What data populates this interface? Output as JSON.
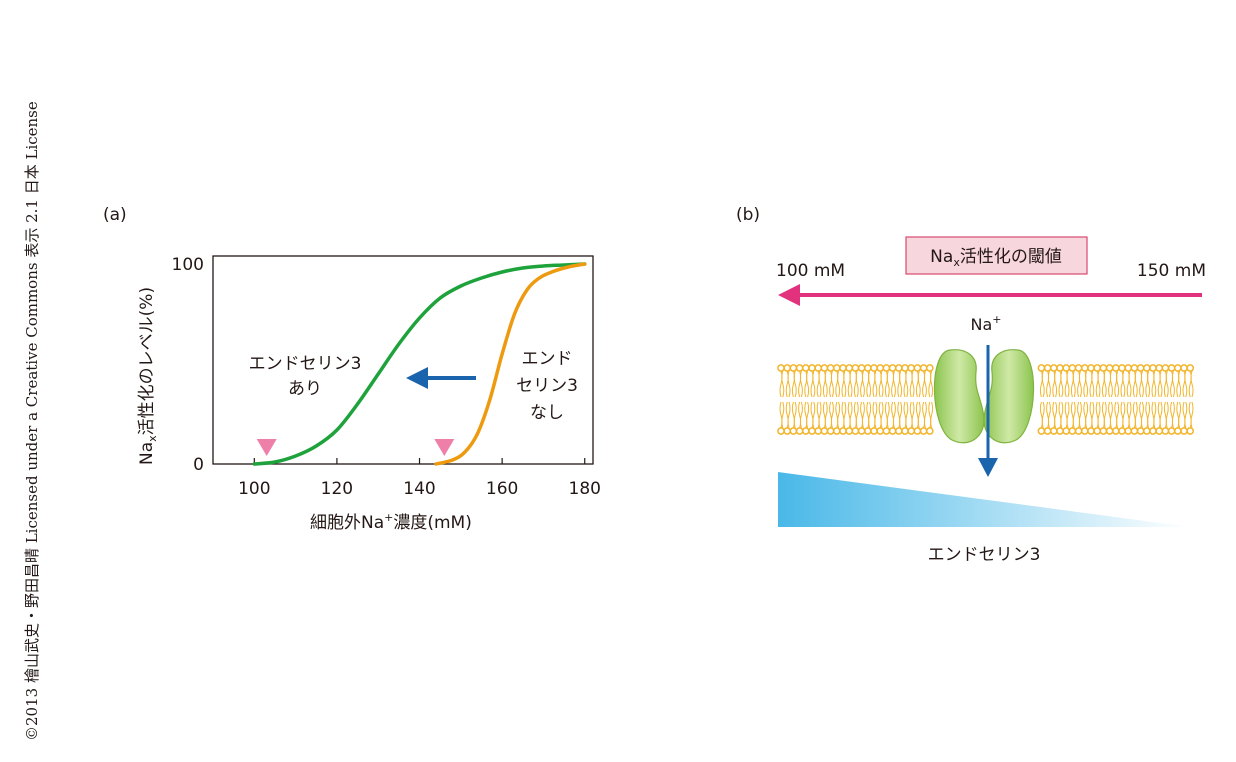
{
  "credit": "©2013 檜山武史・野田昌晴 Licensed under a Creative Commons 表示 2.1 日本 License",
  "panel_a": {
    "label": "(a)",
    "ylabel_main": "Na",
    "ylabel_sub": "x",
    "ylabel_rest": "活性化のレベル(%)",
    "xlabel_pre": "細胞外Na",
    "xlabel_sup": "+",
    "xlabel_post": "濃度(mM)",
    "annotation_with": [
      "エンドセリン3",
      "あり"
    ],
    "annotation_without": [
      "エンド",
      "セリン3",
      "なし"
    ]
  },
  "panel_b": {
    "label": "(b)",
    "threshold_main": "Na",
    "threshold_sub": "x",
    "threshold_rest": "活性化の閾値",
    "left_conc": "100 mM",
    "right_conc": "150 mM",
    "ion_main": "Na",
    "ion_sup": "+",
    "gradient_label": "エンドセリン3"
  },
  "colors": {
    "green_curve": "#1ea33c",
    "orange_curve": "#ee9a10",
    "blue_arrow": "#1a64ad",
    "magenta_arrow": "#e2317d",
    "marker": "#ee7fa9",
    "threshold_fill": "#f8d6dd",
    "threshold_border": "#d84a72",
    "lipid": "#f2b52a",
    "channel": "#a9d66c",
    "gradient": "#49b8e8"
  },
  "chart_data": {
    "type": "line",
    "xlabel": "細胞外Na+濃度(mM)",
    "ylabel": "Nax活性化のレベル(%)",
    "xlim": [
      90,
      182
    ],
    "ylim": [
      0,
      100
    ],
    "x_ticks": [
      100,
      120,
      140,
      160,
      180
    ],
    "y_ticks": [
      0,
      100
    ],
    "series": [
      {
        "name": "エンドセリン3あり",
        "color": "#1ea33c",
        "x": [
          100,
          105,
          110,
          115,
          120,
          125,
          130,
          135,
          140,
          145,
          150,
          155,
          160,
          165,
          170,
          175,
          180
        ],
        "y": [
          0,
          1,
          4,
          9,
          17,
          30,
          45,
          60,
          73,
          83,
          89,
          93,
          96,
          98,
          99,
          99.5,
          100
        ]
      },
      {
        "name": "エンドセリン3なし",
        "color": "#ee9a10",
        "x": [
          144,
          148,
          151,
          154,
          157,
          160,
          163,
          166,
          169,
          172,
          176,
          180
        ],
        "y": [
          0,
          2,
          6,
          15,
          32,
          55,
          75,
          87,
          93,
          96,
          98.5,
          100
        ]
      }
    ],
    "thresholds": [
      103,
      146
    ]
  }
}
